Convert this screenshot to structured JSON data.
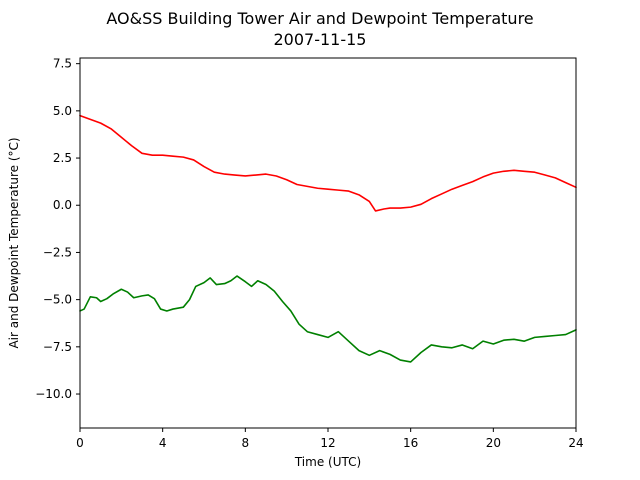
{
  "chart_data": {
    "type": "line",
    "title": "AO&SS Building Tower Air and Dewpoint Temperature",
    "subtitle": "2007-11-15",
    "xlabel": "Time (UTC)",
    "ylabel": "Air and Dewpoint Temperature (°C)",
    "xlim": [
      0,
      24
    ],
    "ylim": [
      -11.8,
      7.8
    ],
    "xticks": [
      0,
      4,
      8,
      12,
      16,
      20,
      24
    ],
    "xtick_labels": [
      "0",
      "4",
      "8",
      "12",
      "16",
      "20",
      "24"
    ],
    "yticks": [
      -10.0,
      -7.5,
      -5.0,
      -2.5,
      0.0,
      2.5,
      5.0,
      7.5
    ],
    "ytick_labels": [
      "−10.0",
      "−7.5",
      "−5.0",
      "−2.5",
      "0.0",
      "2.5",
      "5.0",
      "7.5"
    ],
    "grid": false,
    "series": [
      {
        "color": "#ff0000",
        "x": [
          0,
          0.5,
          1,
          1.5,
          2,
          2.5,
          3,
          3.5,
          4,
          4.5,
          5,
          5.5,
          6,
          6.5,
          7,
          7.5,
          8,
          8.5,
          9,
          9.5,
          10,
          10.5,
          11,
          11.5,
          12,
          12.5,
          13,
          13.5,
          14,
          14.3,
          14.7,
          15,
          15.5,
          16,
          16.5,
          17,
          17.5,
          18,
          18.5,
          19,
          19.5,
          20,
          20.5,
          21,
          21.5,
          22,
          22.5,
          23,
          23.5,
          24
        ],
        "y": [
          4.75,
          4.55,
          4.35,
          4.05,
          3.6,
          3.15,
          2.75,
          2.65,
          2.65,
          2.6,
          2.55,
          2.4,
          2.05,
          1.75,
          1.65,
          1.6,
          1.55,
          1.6,
          1.65,
          1.55,
          1.35,
          1.1,
          1.0,
          0.9,
          0.85,
          0.8,
          0.75,
          0.55,
          0.2,
          -0.3,
          -0.2,
          -0.15,
          -0.15,
          -0.1,
          0.05,
          0.35,
          0.6,
          0.85,
          1.05,
          1.25,
          1.5,
          1.7,
          1.8,
          1.85,
          1.8,
          1.75,
          1.6,
          1.45,
          1.2,
          0.95
        ]
      },
      {
        "color": "#008000",
        "x": [
          0,
          0.2,
          0.5,
          0.8,
          1,
          1.3,
          1.6,
          2,
          2.3,
          2.6,
          3,
          3.3,
          3.6,
          3.9,
          4.2,
          4.5,
          5,
          5.3,
          5.6,
          6,
          6.3,
          6.6,
          7,
          7.3,
          7.6,
          8,
          8.3,
          8.6,
          9,
          9.4,
          9.8,
          10.2,
          10.6,
          11,
          11.5,
          12,
          12.5,
          13,
          13.5,
          14,
          14.5,
          15,
          15.5,
          16,
          16.5,
          17,
          17.5,
          18,
          18.5,
          19,
          19.5,
          20,
          20.5,
          21,
          21.5,
          22,
          22.5,
          23,
          23.5,
          24
        ],
        "y": [
          -5.6,
          -5.5,
          -4.85,
          -4.9,
          -5.1,
          -4.95,
          -4.7,
          -4.45,
          -4.6,
          -4.9,
          -4.8,
          -4.75,
          -4.95,
          -5.5,
          -5.6,
          -5.5,
          -5.4,
          -5.0,
          -4.3,
          -4.1,
          -3.85,
          -4.2,
          -4.15,
          -4.0,
          -3.75,
          -4.05,
          -4.3,
          -4.0,
          -4.2,
          -4.55,
          -5.1,
          -5.6,
          -6.3,
          -6.7,
          -6.85,
          -7.0,
          -6.7,
          -7.2,
          -7.7,
          -7.95,
          -7.7,
          -7.9,
          -8.2,
          -8.3,
          -7.8,
          -7.4,
          -7.5,
          -7.55,
          -7.4,
          -7.6,
          -7.2,
          -7.35,
          -7.15,
          -7.1,
          -7.2,
          -7.0,
          -6.95,
          -6.9,
          -6.85,
          -6.6
        ]
      }
    ]
  }
}
